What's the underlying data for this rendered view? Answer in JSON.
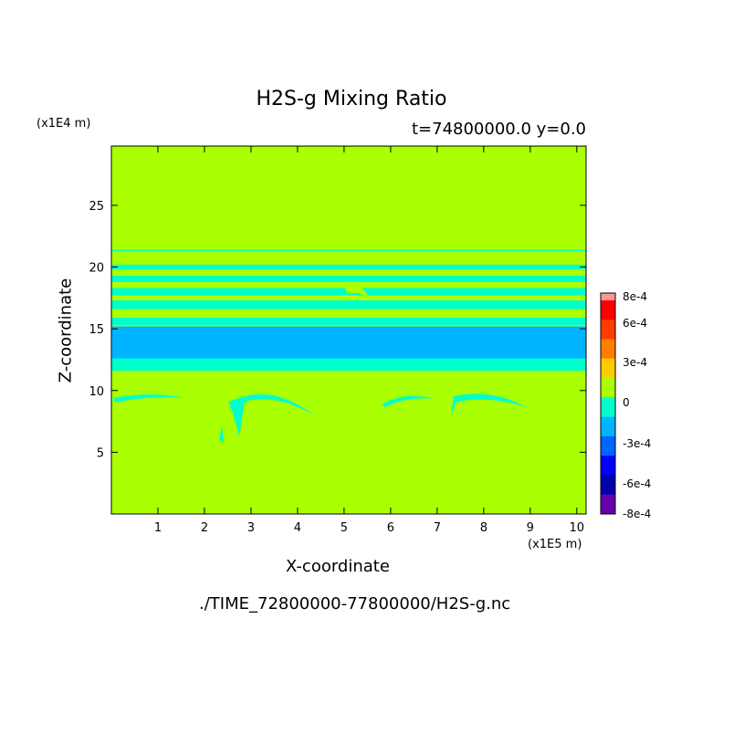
{
  "chart_data": {
    "type": "heatmap",
    "title": "H2S-g Mixing Ratio",
    "subtitle": "t=74800000.0 y=0.0",
    "xlabel": "X-coordinate",
    "ylabel": "Z-coordinate",
    "x_unit": "(x1E5 m)",
    "y_unit": "(x1E4 m)",
    "file_path": "./TIME_72800000-77800000/H2S-g.nc",
    "xlim": [
      0,
      10.2
    ],
    "ylim": [
      0,
      29.8
    ],
    "x_ticks": [
      "1",
      "2",
      "3",
      "4",
      "5",
      "6",
      "7",
      "8",
      "9",
      "10"
    ],
    "y_ticks": [
      "5",
      "10",
      "15",
      "20",
      "25"
    ],
    "colorbar": {
      "labels": [
        "8e-4",
        "6e-4",
        "3e-4",
        "0",
        "-3e-4",
        "-6e-4",
        "-8e-4"
      ],
      "colors": [
        "#ff0000",
        "#ff3d00",
        "#ff8000",
        "#ffcc00",
        "#aaff00",
        "#00ffcc",
        "#00b4ff",
        "#0066ff",
        "#0000ff",
        "#0000aa",
        "#6600aa"
      ],
      "top_swatch": "#ff9999"
    },
    "background_level": "0",
    "background_color": "#aaff00",
    "bands": [
      {
        "z_range": [
          11.6,
          14.8
        ],
        "level_color": "#00ffcc"
      },
      {
        "z_range": [
          12.6,
          15.2
        ],
        "level_color": "#00b4ff"
      },
      {
        "z_range": [
          15.3,
          15.9
        ],
        "level_color": "#00ffcc"
      },
      {
        "z_range": [
          16.6,
          17.3
        ],
        "level_color": "#00ffcc"
      },
      {
        "z_range": [
          17.7,
          18.3
        ],
        "level_color": "#00ffcc"
      },
      {
        "z_range": [
          18.8,
          19.3
        ],
        "level_color": "#00ffcc"
      },
      {
        "z_range": [
          19.8,
          20.2
        ],
        "level_color": "#00ffcc"
      },
      {
        "z_range": [
          21.3,
          21.4
        ],
        "level_color": "#00ffcc"
      }
    ]
  }
}
